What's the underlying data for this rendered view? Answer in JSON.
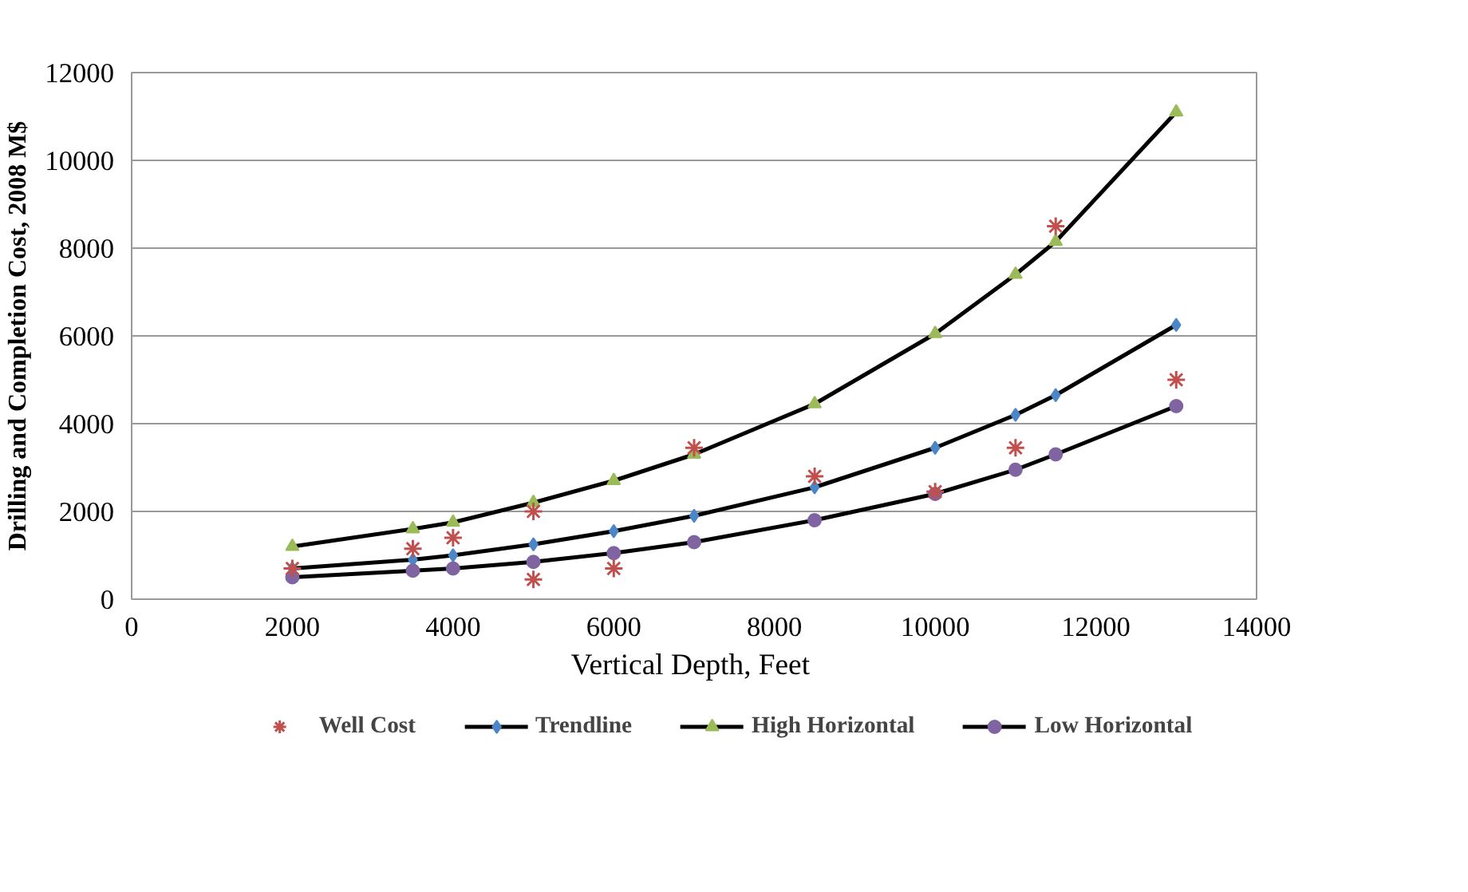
{
  "chart_data": {
    "type": "line",
    "xlabel": "Vertical Depth,  Feet",
    "ylabel": "Drilling and Completion Cost, 2008 M$",
    "xlim": [
      0,
      14000
    ],
    "xticks": [
      0,
      2000,
      4000,
      6000,
      8000,
      10000,
      12000,
      14000
    ],
    "ylim": [
      0,
      12000
    ],
    "yticks": [
      0,
      2000,
      4000,
      6000,
      8000,
      10000,
      12000
    ],
    "grid": "y",
    "legend": "bottom",
    "line_style": "solid",
    "series": [
      {
        "name": "Well Cost",
        "type": "scatter",
        "marker": "cross",
        "color": "#c0504d",
        "x": [
          2000,
          3500,
          4000,
          5000,
          5000,
          6000,
          7000,
          8500,
          10000,
          11000,
          11500,
          13000
        ],
        "values": [
          700,
          1150,
          1400,
          2000,
          450,
          700,
          3450,
          2800,
          2450,
          3450,
          8500,
          5000
        ]
      },
      {
        "name": "Trendline",
        "marker": "diamond",
        "color": "#4a86c8",
        "x": [
          2000,
          3500,
          4000,
          5000,
          6000,
          7000,
          8500,
          10000,
          11000,
          11500,
          13000
        ],
        "values": [
          700,
          900,
          1000,
          1250,
          1550,
          1900,
          2550,
          3450,
          4200,
          4650,
          6250
        ]
      },
      {
        "name": "High Horizontal",
        "marker": "triangle",
        "color": "#9bbb59",
        "x": [
          2000,
          3500,
          4000,
          5000,
          6000,
          7000,
          8500,
          10000,
          11000,
          11500,
          13000
        ],
        "values": [
          1200,
          1600,
          1750,
          2200,
          2700,
          3300,
          4450,
          6050,
          7400,
          8150,
          11100
        ]
      },
      {
        "name": "Low Horizontal",
        "marker": "circle",
        "color": "#8064a2",
        "x": [
          2000,
          3500,
          4000,
          5000,
          6000,
          7000,
          8500,
          10000,
          11000,
          11500,
          13000
        ],
        "values": [
          500,
          650,
          700,
          850,
          1050,
          1300,
          1800,
          2400,
          2950,
          3300,
          4400
        ]
      }
    ]
  }
}
